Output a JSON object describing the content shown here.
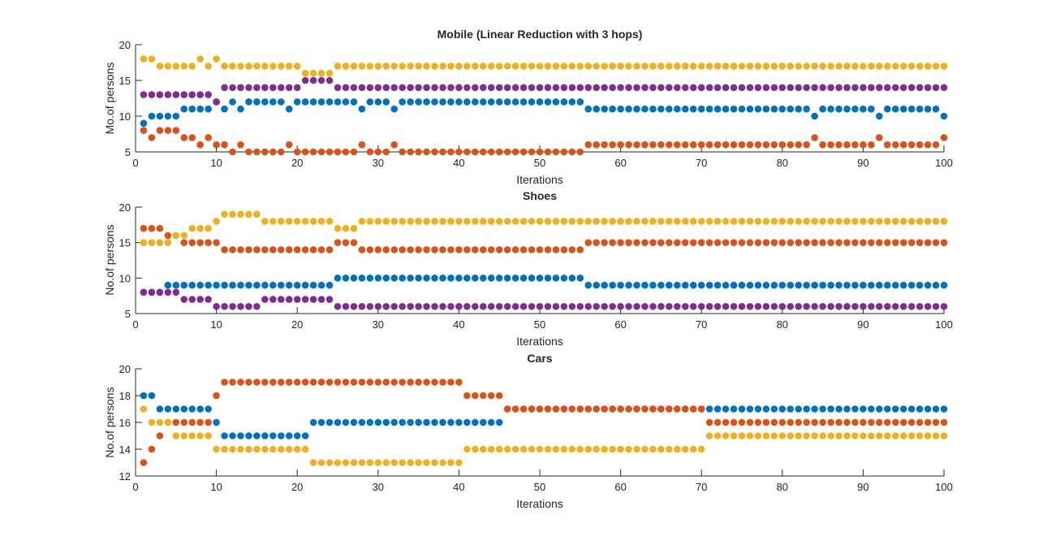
{
  "chart_data": [
    {
      "type": "scatter",
      "title": "Mobile (Linear Reduction with 3 hops)",
      "xlabel": "Iterations",
      "ylabel": "Mo.of persons",
      "xlim": [
        0,
        100
      ],
      "ylim": [
        5,
        20
      ],
      "xticks": [
        0,
        10,
        20,
        30,
        40,
        50,
        60,
        70,
        80,
        90,
        100
      ],
      "yticks": [
        5,
        10,
        15,
        20
      ],
      "grid": false,
      "series": [
        {
          "color": "#0072BD",
          "runs": [
            [
              1,
              9
            ],
            [
              2,
              10
            ],
            [
              3,
              10
            ],
            [
              4,
              10
            ],
            [
              5,
              10
            ],
            [
              6,
              11
            ],
            [
              7,
              11
            ],
            [
              8,
              11
            ],
            [
              9,
              11
            ],
            [
              10,
              12
            ],
            [
              11,
              11
            ],
            [
              12,
              12
            ],
            [
              13,
              11
            ],
            [
              14,
              12
            ],
            [
              15,
              12
            ],
            [
              16,
              12
            ],
            [
              17,
              12
            ],
            [
              18,
              12
            ],
            [
              19,
              11
            ],
            [
              20,
              12
            ],
            [
              21,
              12
            ],
            [
              22,
              12
            ],
            [
              23,
              12
            ],
            [
              24,
              12
            ],
            [
              25,
              12
            ],
            [
              26,
              12
            ],
            [
              27,
              12
            ],
            [
              28,
              11
            ],
            [
              29,
              12
            ],
            [
              30,
              12
            ],
            [
              31,
              12
            ],
            [
              32,
              11
            ],
            [
              33,
              12
            ],
            [
              55,
              12
            ],
            [
              56,
              11
            ],
            [
              83,
              11
            ],
            [
              84,
              10
            ],
            [
              85,
              11
            ],
            [
              91,
              11
            ],
            [
              92,
              10
            ],
            [
              93,
              11
            ],
            [
              99,
              11
            ],
            [
              100,
              10
            ]
          ]
        },
        {
          "color": "#D95319",
          "runs": [
            [
              1,
              8
            ],
            [
              2,
              7
            ],
            [
              3,
              8
            ],
            [
              4,
              8
            ],
            [
              5,
              8
            ],
            [
              6,
              7
            ],
            [
              7,
              7
            ],
            [
              8,
              6
            ],
            [
              9,
              7
            ],
            [
              10,
              6
            ],
            [
              11,
              6
            ],
            [
              12,
              5
            ],
            [
              13,
              6
            ],
            [
              14,
              5
            ],
            [
              18,
              5
            ],
            [
              19,
              6
            ],
            [
              20,
              5
            ],
            [
              27,
              5
            ],
            [
              28,
              6
            ],
            [
              29,
              5
            ],
            [
              31,
              5
            ],
            [
              32,
              6
            ],
            [
              33,
              5
            ],
            [
              55,
              5
            ],
            [
              56,
              6
            ],
            [
              83,
              6
            ],
            [
              84,
              7
            ],
            [
              85,
              6
            ],
            [
              91,
              6
            ],
            [
              92,
              7
            ],
            [
              93,
              6
            ],
            [
              99,
              6
            ],
            [
              100,
              7
            ]
          ]
        },
        {
          "color": "#EDB120",
          "runs": [
            [
              1,
              18
            ],
            [
              2,
              18
            ],
            [
              3,
              17
            ],
            [
              7,
              17
            ],
            [
              8,
              18
            ],
            [
              9,
              17
            ],
            [
              10,
              18
            ],
            [
              11,
              17
            ],
            [
              20,
              17
            ],
            [
              21,
              16
            ],
            [
              24,
              16
            ],
            [
              25,
              17
            ],
            [
              100,
              17
            ]
          ]
        },
        {
          "color": "#7E2F8E",
          "runs": [
            [
              1,
              13
            ],
            [
              9,
              13
            ],
            [
              10,
              12
            ],
            [
              11,
              14
            ],
            [
              20,
              14
            ],
            [
              21,
              15
            ],
            [
              24,
              15
            ],
            [
              25,
              14
            ],
            [
              100,
              14
            ]
          ]
        }
      ]
    },
    {
      "type": "scatter",
      "title": "Shoes",
      "xlabel": "Iterations",
      "ylabel": "No.of persons",
      "xlim": [
        0,
        100
      ],
      "ylim": [
        5,
        20
      ],
      "xticks": [
        0,
        10,
        20,
        30,
        40,
        50,
        60,
        70,
        80,
        90,
        100
      ],
      "yticks": [
        5,
        10,
        15,
        20
      ],
      "grid": false,
      "series": [
        {
          "color": "#0072BD",
          "runs": [
            [
              1,
              8
            ],
            [
              3,
              8
            ],
            [
              4,
              9
            ],
            [
              24,
              9
            ],
            [
              25,
              10
            ],
            [
              55,
              10
            ],
            [
              56,
              9
            ],
            [
              100,
              9
            ]
          ]
        },
        {
          "color": "#D95319",
          "runs": [
            [
              1,
              17
            ],
            [
              3,
              17
            ],
            [
              4,
              16
            ],
            [
              5,
              16
            ],
            [
              6,
              15
            ],
            [
              10,
              15
            ],
            [
              11,
              14
            ],
            [
              24,
              14
            ],
            [
              25,
              15
            ],
            [
              27,
              15
            ],
            [
              28,
              14
            ],
            [
              55,
              14
            ],
            [
              56,
              15
            ],
            [
              100,
              15
            ]
          ]
        },
        {
          "color": "#EDB120",
          "runs": [
            [
              1,
              15
            ],
            [
              4,
              15
            ],
            [
              5,
              16
            ],
            [
              6,
              16
            ],
            [
              7,
              17
            ],
            [
              9,
              17
            ],
            [
              10,
              18
            ],
            [
              11,
              19
            ],
            [
              15,
              19
            ],
            [
              16,
              18
            ],
            [
              24,
              18
            ],
            [
              25,
              17
            ],
            [
              27,
              17
            ],
            [
              28,
              18
            ],
            [
              100,
              18
            ]
          ]
        },
        {
          "color": "#7E2F8E",
          "runs": [
            [
              1,
              8
            ],
            [
              3,
              8
            ],
            [
              4,
              8
            ],
            [
              5,
              8
            ],
            [
              6,
              7
            ],
            [
              9,
              7
            ],
            [
              10,
              6
            ],
            [
              15,
              6
            ],
            [
              16,
              7
            ],
            [
              24,
              7
            ],
            [
              25,
              6
            ],
            [
              100,
              6
            ]
          ]
        }
      ]
    },
    {
      "type": "scatter",
      "title": "Cars",
      "xlabel": "Iterations",
      "ylabel": "No.of persons",
      "xlim": [
        0,
        100
      ],
      "ylim": [
        12,
        20
      ],
      "xticks": [
        0,
        10,
        20,
        30,
        40,
        50,
        60,
        70,
        80,
        90,
        100
      ],
      "yticks": [
        12,
        14,
        16,
        18,
        20
      ],
      "grid": false,
      "series": [
        {
          "color": "#0072BD",
          "runs": [
            [
              1,
              18
            ],
            [
              2,
              18
            ],
            [
              3,
              17
            ],
            [
              9,
              17
            ],
            [
              10,
              16
            ],
            [
              11,
              15
            ],
            [
              21,
              15
            ],
            [
              22,
              16
            ],
            [
              45,
              16
            ],
            [
              46,
              17
            ],
            [
              70,
              17
            ],
            [
              71,
              17
            ],
            [
              100,
              17
            ]
          ]
        },
        {
          "color": "#D95319",
          "runs": [
            [
              1,
              13
            ],
            [
              2,
              14
            ],
            [
              3,
              15
            ],
            [
              4,
              16
            ],
            [
              9,
              16
            ],
            [
              10,
              18
            ],
            [
              11,
              19
            ],
            [
              40,
              19
            ],
            [
              41,
              18
            ],
            [
              45,
              18
            ],
            [
              46,
              17
            ],
            [
              70,
              17
            ],
            [
              71,
              16
            ],
            [
              100,
              16
            ]
          ]
        },
        {
          "color": "#EDB120",
          "runs": [
            [
              1,
              17
            ],
            [
              2,
              16
            ],
            [
              4,
              16
            ],
            [
              5,
              15
            ],
            [
              9,
              15
            ],
            [
              10,
              14
            ],
            [
              21,
              14
            ],
            [
              22,
              13
            ],
            [
              40,
              13
            ],
            [
              41,
              14
            ],
            [
              70,
              14
            ],
            [
              71,
              15
            ],
            [
              100,
              15
            ]
          ]
        }
      ]
    }
  ]
}
